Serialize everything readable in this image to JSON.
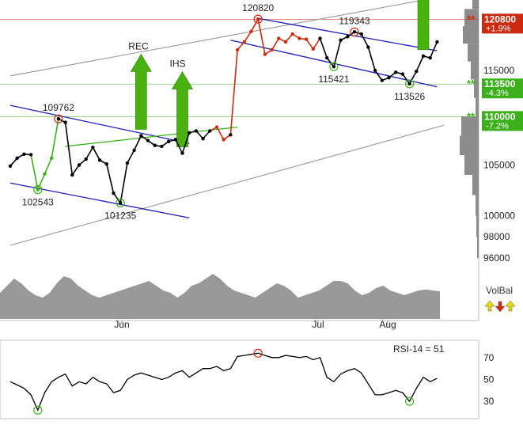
{
  "chart_data": {
    "type": "line",
    "x_axis": {
      "ticks": [
        "Jun",
        "Jul",
        "Aug"
      ]
    },
    "y_axis": {
      "scale": "log",
      "ticks": [
        96000,
        98000,
        100000,
        105000,
        110000,
        115000
      ],
      "ylim": [
        95000,
        124000
      ]
    },
    "price_series": [
      {
        "i": 0,
        "v": 104900
      },
      {
        "i": 1,
        "v": 105700
      },
      {
        "i": 2,
        "v": 106100
      },
      {
        "i": 3,
        "v": 106050
      },
      {
        "i": 4,
        "v": 102543
      },
      {
        "i": 5,
        "v": 104100
      },
      {
        "i": 6,
        "v": 105700
      },
      {
        "i": 7,
        "v": 109762
      },
      {
        "i": 8,
        "v": 109400
      },
      {
        "i": 9,
        "v": 104000
      },
      {
        "i": 10,
        "v": 105000
      },
      {
        "i": 11,
        "v": 105600
      },
      {
        "i": 12,
        "v": 106800
      },
      {
        "i": 13,
        "v": 105500
      },
      {
        "i": 14,
        "v": 105100
      },
      {
        "i": 15,
        "v": 102200
      },
      {
        "i": 16,
        "v": 101235
      },
      {
        "i": 17,
        "v": 105200
      },
      {
        "i": 18,
        "v": 106500
      },
      {
        "i": 19,
        "v": 108000
      },
      {
        "i": 20,
        "v": 107500
      },
      {
        "i": 21,
        "v": 107000
      },
      {
        "i": 22,
        "v": 106900
      },
      {
        "i": 23,
        "v": 107400
      },
      {
        "i": 24,
        "v": 107600
      },
      {
        "i": 25,
        "v": 106200
      },
      {
        "i": 26,
        "v": 108300
      },
      {
        "i": 27,
        "v": 108500
      },
      {
        "i": 28,
        "v": 107700
      },
      {
        "i": 29,
        "v": 108500
      },
      {
        "i": 30,
        "v": 108900
      },
      {
        "i": 31,
        "v": 107600
      },
      {
        "i": 32,
        "v": 108100
      },
      {
        "i": 33,
        "v": 117300
      },
      {
        "i": 34,
        "v": 118200
      },
      {
        "i": 35,
        "v": 119400
      },
      {
        "i": 36,
        "v": 120820
      },
      {
        "i": 37,
        "v": 116800
      },
      {
        "i": 38,
        "v": 117300
      },
      {
        "i": 39,
        "v": 118600
      },
      {
        "i": 40,
        "v": 118200
      },
      {
        "i": 41,
        "v": 119100
      },
      {
        "i": 42,
        "v": 118600
      },
      {
        "i": 43,
        "v": 118500
      },
      {
        "i": 44,
        "v": 117400
      },
      {
        "i": 45,
        "v": 118600
      },
      {
        "i": 46,
        "v": 116400
      },
      {
        "i": 47,
        "v": 115421
      },
      {
        "i": 48,
        "v": 118400
      },
      {
        "i": 49,
        "v": 118800
      },
      {
        "i": 50,
        "v": 119343
      },
      {
        "i": 51,
        "v": 119100
      },
      {
        "i": 52,
        "v": 117600
      },
      {
        "i": 53,
        "v": 115000
      },
      {
        "i": 54,
        "v": 113900
      },
      {
        "i": 55,
        "v": 114200
      },
      {
        "i": 56,
        "v": 114800
      },
      {
        "i": 57,
        "v": 114600
      },
      {
        "i": 58,
        "v": 113526
      },
      {
        "i": 59,
        "v": 114900
      },
      {
        "i": 60,
        "v": 116600
      },
      {
        "i": 61,
        "v": 116400
      },
      {
        "i": 62,
        "v": 118200
      }
    ],
    "segments": [
      {
        "from": 0,
        "to": 3,
        "color": "#000000"
      },
      {
        "from": 3,
        "to": 7,
        "color": "#3cb01a"
      },
      {
        "from": 7,
        "to": 29,
        "color": "#000000"
      },
      {
        "from": 29,
        "to": 32,
        "color": "#cc2b10"
      },
      {
        "from": 32,
        "to": 45,
        "color": "#cc2b10"
      },
      {
        "from": 45,
        "to": 62,
        "color": "#000000"
      }
    ],
    "extreme_labels": [
      {
        "i": 7,
        "v": 109762,
        "label": "109762",
        "pos": "above",
        "kind": "high"
      },
      {
        "i": 4,
        "v": 102543,
        "label": "102543",
        "pos": "below",
        "kind": "low"
      },
      {
        "i": 16,
        "v": 101235,
        "label": "101235",
        "pos": "below",
        "kind": "low"
      },
      {
        "i": 36,
        "v": 120820,
        "label": "120820",
        "pos": "above",
        "kind": "high"
      },
      {
        "i": 50,
        "v": 119343,
        "label": "119343",
        "pos": "above",
        "kind": "high"
      },
      {
        "i": 47,
        "v": 115421,
        "label": "115421",
        "pos": "below",
        "kind": "low"
      },
      {
        "i": 58,
        "v": 113526,
        "label": "113526",
        "pos": "below",
        "kind": "low"
      }
    ],
    "signals": [
      {
        "label": "REC",
        "at_i": 19,
        "direction": "up"
      },
      {
        "label": "IHS",
        "at_i": 25,
        "direction": "up"
      },
      {
        "label": "REC",
        "at_i": 60,
        "direction": "up"
      }
    ],
    "trend_channels": {
      "gray_upper": [
        {
          "i": 0,
          "v": 114400
        },
        {
          "i": 63,
          "v": 123500
        }
      ],
      "gray_lower": [
        {
          "i": 0,
          "v": 97200
        },
        {
          "i": 63,
          "v": 109100
        }
      ],
      "blue_falling_1_upper": [
        {
          "i": 0,
          "v": 111200
        },
        {
          "i": 26,
          "v": 107200
        }
      ],
      "blue_falling_1_lower": [
        {
          "i": 0,
          "v": 103200
        },
        {
          "i": 26,
          "v": 99800
        }
      ],
      "green_ihs_neckline": [
        {
          "i": 8,
          "v": 106900
        },
        {
          "i": 33,
          "v": 108900
        }
      ],
      "blue_falling_2_upper": [
        {
          "i": 36,
          "v": 120900
        },
        {
          "i": 62,
          "v": 117200
        }
      ],
      "blue_falling_2_lower": [
        {
          "i": 32,
          "v": 118400
        },
        {
          "i": 62,
          "v": 113200
        }
      ]
    },
    "horizontal_levels": [
      {
        "value": 120800,
        "label": "120800",
        "change": "+1.9%",
        "color": "#cc2b10"
      },
      {
        "value": 113500,
        "label": "113500",
        "change": "-4.3%",
        "color": "#3cb01a"
      },
      {
        "value": 110000,
        "label": "110000",
        "change": "-7.2%",
        "color": "#3cb01a"
      }
    ],
    "volume_profile": [
      {
        "v": 123000,
        "w": 8
      },
      {
        "v": 121000,
        "w": 18
      },
      {
        "v": 119000,
        "w": 20
      },
      {
        "v": 117000,
        "w": 14
      },
      {
        "v": 115000,
        "w": 10
      },
      {
        "v": 113000,
        "w": 6
      },
      {
        "v": 111000,
        "w": 4
      },
      {
        "v": 109000,
        "w": 22
      },
      {
        "v": 107000,
        "w": 24
      },
      {
        "v": 105000,
        "w": 18
      },
      {
        "v": 103000,
        "w": 8
      },
      {
        "v": 101000,
        "w": 4
      },
      {
        "v": 99000,
        "w": 3
      },
      {
        "v": 97000,
        "w": 2
      }
    ],
    "volume_balance": {
      "label": "VolBal",
      "values": [
        0.55,
        0.7,
        0.85,
        0.75,
        0.6,
        0.5,
        0.45,
        0.55,
        0.75,
        0.9,
        0.85,
        0.7,
        0.6,
        0.5,
        0.45,
        0.5,
        0.55,
        0.6,
        0.65,
        0.7,
        0.75,
        0.8,
        0.7,
        0.6,
        0.55,
        0.45,
        0.55,
        0.7,
        0.75,
        0.85,
        0.95,
        0.85,
        0.7,
        0.6,
        0.55,
        0.5,
        0.45,
        0.55,
        0.65,
        0.75,
        0.7,
        0.6,
        0.45,
        0.5,
        0.55,
        0.6,
        0.7,
        0.8,
        0.8,
        0.75,
        0.6,
        0.5,
        0.55,
        0.65,
        0.7,
        0.6,
        0.55,
        0.5,
        0.55,
        0.6,
        0.62,
        0.6,
        0.58
      ],
      "arrows": [
        "up",
        "down",
        "up"
      ],
      "arrow_colors": [
        "#e8d800",
        "#cc2b10",
        "#e8d800"
      ]
    },
    "rsi": {
      "label": "RSI-14 = 51",
      "ticks": [
        30,
        50,
        70
      ],
      "extremes": [
        {
          "i": 4,
          "kind": "low"
        },
        {
          "i": 36,
          "kind": "high"
        },
        {
          "i": 58,
          "kind": "low"
        }
      ],
      "values": [
        48,
        45,
        42,
        36,
        22,
        38,
        48,
        52,
        55,
        44,
        48,
        46,
        52,
        48,
        46,
        38,
        40,
        50,
        54,
        56,
        54,
        52,
        50,
        52,
        56,
        58,
        52,
        56,
        60,
        60,
        62,
        58,
        60,
        71,
        72,
        73,
        74,
        72,
        70,
        70,
        72,
        71,
        70,
        71,
        68,
        70,
        52,
        48,
        55,
        58,
        60,
        56,
        46,
        36,
        36,
        38,
        40,
        38,
        30,
        42,
        52,
        48,
        51
      ]
    }
  }
}
